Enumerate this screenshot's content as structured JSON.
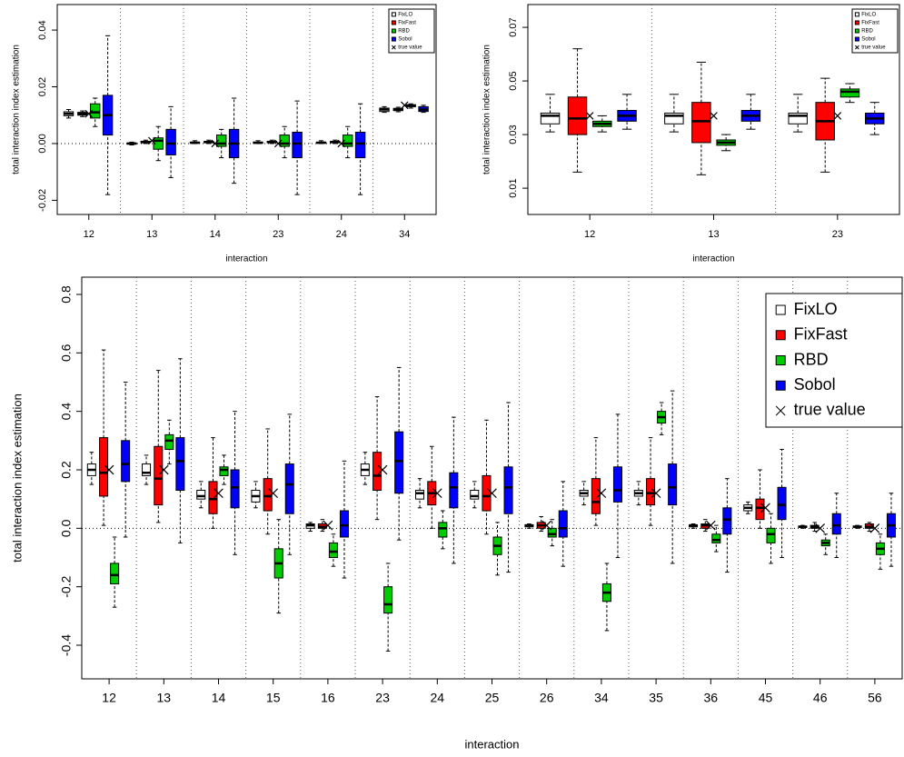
{
  "chart_data": [
    {
      "type": "box",
      "x_label": "interaction",
      "y_label": "total interaction index estimation",
      "categories": [
        "12",
        "13",
        "14",
        "23",
        "24",
        "34"
      ],
      "ylim": [
        -0.025,
        0.049
      ],
      "yticks": [
        {
          "value": -0.02,
          "label": "-0.02"
        },
        {
          "value": 0,
          "label": "0.00"
        },
        0.02,
        0.04
      ],
      "reference_line": 0,
      "legend": "topright",
      "series": [
        {
          "name": "FixLO",
          "color": "#ffffff",
          "stats": [
            [
              0.009,
              0.0098,
              0.0105,
              0.0112,
              0.012
            ],
            [
              -0.0005,
              -0.0002,
              0,
              0.0002,
              0.0005
            ],
            [
              0,
              0.0001,
              0.0003,
              0.0005,
              0.001
            ],
            [
              0,
              0.0001,
              0.0003,
              0.0005,
              0.001
            ],
            [
              0,
              0.0001,
              0.0003,
              0.0005,
              0.001
            ],
            [
              0.011,
              0.0113,
              0.012,
              0.0125,
              0.013
            ]
          ]
        },
        {
          "name": "FixFast",
          "color": "#ff0000",
          "stats": [
            [
              0.0095,
              0.01,
              0.0105,
              0.011,
              0.0115
            ],
            [
              0,
              0.0003,
              0.0005,
              0.0008,
              0.0012
            ],
            [
              0,
              0.0003,
              0.0005,
              0.0008,
              0.0012
            ],
            [
              0,
              0.0003,
              0.0005,
              0.0008,
              0.0012
            ],
            [
              0,
              0.0003,
              0.0005,
              0.0008,
              0.0012
            ],
            [
              0.0112,
              0.0116,
              0.012,
              0.0124,
              0.0128
            ]
          ]
        },
        {
          "name": "RBD",
          "color": "#00cc00",
          "stats": [
            [
              0.006,
              0.009,
              0.011,
              0.014,
              0.016
            ],
            [
              -0.006,
              -0.002,
              0.001,
              0.002,
              0.006
            ],
            [
              -0.005,
              -0.001,
              0,
              0.003,
              0.005
            ],
            [
              -0.005,
              -0.001,
              0,
              0.003,
              0.006
            ],
            [
              -0.005,
              -0.001,
              0,
              0.003,
              0.006
            ],
            [
              0.0125,
              0.013,
              0.0133,
              0.0137,
              0.014
            ]
          ]
        },
        {
          "name": "Sobol",
          "color": "#0000ff",
          "stats": [
            [
              -0.018,
              0.003,
              0.01,
              0.017,
              0.038
            ],
            [
              -0.012,
              -0.004,
              0,
              0.005,
              0.013
            ],
            [
              -0.014,
              -0.005,
              0,
              0.005,
              0.016
            ],
            [
              -0.018,
              -0.005,
              0,
              0.004,
              0.015
            ],
            [
              -0.018,
              -0.005,
              0,
              0.004,
              0.014
            ],
            [
              0.011,
              0.0113,
              0.012,
              0.013,
              0.0135
            ]
          ]
        },
        {
          "name": "true value",
          "marker": "x",
          "values": [
            0.0105,
            0.001,
            0,
            0,
            0,
            0.0135
          ]
        }
      ]
    },
    {
      "type": "box",
      "x_label": "interaction",
      "y_label": "total interaction index estimation",
      "categories": [
        "12",
        "13",
        "23"
      ],
      "ylim": [
        0.0002,
        0.0785
      ],
      "yticks": [
        0.01,
        0.03,
        0.05,
        0.07
      ],
      "legend": "topright",
      "series": [
        {
          "name": "FixLO",
          "color": "#ffffff",
          "stats": [
            [
              0.031,
              0.034,
              0.037,
              0.038,
              0.045
            ],
            [
              0.031,
              0.034,
              0.037,
              0.038,
              0.045
            ],
            [
              0.031,
              0.034,
              0.037,
              0.038,
              0.045
            ]
          ]
        },
        {
          "name": "FixFast",
          "color": "#ff0000",
          "stats": [
            [
              0.016,
              0.03,
              0.036,
              0.044,
              0.062
            ],
            [
              0.015,
              0.027,
              0.035,
              0.042,
              0.057
            ],
            [
              0.016,
              0.028,
              0.035,
              0.042,
              0.051
            ]
          ]
        },
        {
          "name": "RBD",
          "color": "#00cc00",
          "stats": [
            [
              0.031,
              0.033,
              0.034,
              0.035,
              0.037
            ],
            [
              0.024,
              0.026,
              0.027,
              0.028,
              0.03
            ],
            [
              0.042,
              0.044,
              0.046,
              0.047,
              0.049
            ]
          ]
        },
        {
          "name": "Sobol",
          "color": "#0000ff",
          "stats": [
            [
              0.032,
              0.035,
              0.037,
              0.039,
              0.045
            ],
            [
              0.032,
              0.035,
              0.037,
              0.039,
              0.045
            ],
            [
              0.03,
              0.034,
              0.036,
              0.038,
              0.042
            ]
          ]
        },
        {
          "name": "true value",
          "marker": "x",
          "values": [
            0.037,
            0.037,
            0.037
          ]
        }
      ]
    },
    {
      "type": "box",
      "x_label": "interaction",
      "y_label": "total interaction index estimation",
      "categories": [
        "12",
        "13",
        "14",
        "15",
        "16",
        "23",
        "24",
        "25",
        "26",
        "34",
        "35",
        "36",
        "45",
        "46",
        "56"
      ],
      "ylim": [
        -0.515,
        0.859
      ],
      "yticks": [
        -0.4,
        -0.2,
        {
          "value": 0,
          "label": "0.0"
        },
        0.2,
        0.4,
        0.6,
        0.8
      ],
      "reference_line": 0,
      "legend": "topright",
      "series": [
        {
          "name": "FixLO",
          "color": "#ffffff",
          "stats": [
            [
              0.15,
              0.18,
              0.2,
              0.22,
              0.26
            ],
            [
              0.15,
              0.18,
              0.19,
              0.22,
              0.25
            ],
            [
              0.07,
              0.1,
              0.11,
              0.13,
              0.16
            ],
            [
              0.07,
              0.09,
              0.11,
              0.13,
              0.16
            ],
            [
              -0.01,
              0,
              0.01,
              0.015,
              0.02
            ],
            [
              0.15,
              0.18,
              0.2,
              0.22,
              0.26
            ],
            [
              0.07,
              0.1,
              0.12,
              0.13,
              0.17
            ],
            [
              0.07,
              0.1,
              0.11,
              0.13,
              0.16
            ],
            [
              0,
              0.005,
              0.01,
              0.012,
              0.015
            ],
            [
              0.08,
              0.11,
              0.12,
              0.13,
              0.16
            ],
            [
              0.08,
              0.11,
              0.12,
              0.13,
              0.16
            ],
            [
              0,
              0.005,
              0.01,
              0.012,
              0.015
            ],
            [
              0.05,
              0.06,
              0.07,
              0.08,
              0.09
            ],
            [
              0,
              0.003,
              0.005,
              0.008,
              0.01
            ],
            [
              0,
              0.003,
              0.005,
              0.008,
              0.01
            ]
          ]
        },
        {
          "name": "FixFast",
          "color": "#ff0000",
          "stats": [
            [
              0.01,
              0.11,
              0.19,
              0.31,
              0.61
            ],
            [
              0.02,
              0.08,
              0.17,
              0.28,
              0.54
            ],
            [
              0,
              0.05,
              0.1,
              0.16,
              0.31
            ],
            [
              -0.02,
              0.06,
              0.11,
              0.17,
              0.34
            ],
            [
              -0.01,
              0,
              0.005,
              0.015,
              0.03
            ],
            [
              0.03,
              0.13,
              0.18,
              0.26,
              0.45
            ],
            [
              0,
              0.08,
              0.12,
              0.16,
              0.28
            ],
            [
              -0.02,
              0.06,
              0.11,
              0.18,
              0.37
            ],
            [
              -0.01,
              0,
              0.01,
              0.02,
              0.04
            ],
            [
              0.01,
              0.05,
              0.09,
              0.17,
              0.31
            ],
            [
              0.01,
              0.08,
              0.12,
              0.17,
              0.31
            ],
            [
              -0.01,
              0,
              0.01,
              0.015,
              0.03
            ],
            [
              0,
              0.03,
              0.07,
              0.1,
              0.2
            ],
            [
              -0.01,
              0,
              0.005,
              0.01,
              0.02
            ],
            [
              -0.01,
              0,
              0.005,
              0.015,
              0.02
            ]
          ]
        },
        {
          "name": "RBD",
          "color": "#00cc00",
          "stats": [
            [
              -0.27,
              -0.19,
              -0.16,
              -0.12,
              -0.03
            ],
            [
              0.22,
              0.27,
              0.3,
              0.32,
              0.37
            ],
            [
              0.15,
              0.18,
              0.2,
              0.21,
              0.25
            ],
            [
              -0.29,
              -0.17,
              -0.12,
              -0.07,
              0.03
            ],
            [
              -0.13,
              -0.1,
              -0.08,
              -0.05,
              -0.02
            ],
            [
              -0.42,
              -0.29,
              -0.26,
              -0.2,
              -0.12
            ],
            [
              -0.07,
              -0.03,
              0,
              0.02,
              0.06
            ],
            [
              -0.16,
              -0.09,
              -0.06,
              -0.03,
              0.02
            ],
            [
              -0.06,
              -0.03,
              -0.02,
              0,
              0.03
            ],
            [
              -0.35,
              -0.25,
              -0.22,
              -0.19,
              -0.12
            ],
            [
              0.32,
              0.36,
              0.38,
              0.4,
              0.43
            ],
            [
              -0.08,
              -0.05,
              -0.04,
              -0.02,
              0.01
            ],
            [
              -0.12,
              -0.05,
              -0.02,
              0,
              0.05
            ],
            [
              -0.09,
              -0.06,
              -0.05,
              -0.04,
              -0.02
            ],
            [
              -0.14,
              -0.09,
              -0.07,
              -0.05,
              -0.02
            ]
          ]
        },
        {
          "name": "Sobol",
          "color": "#0000ff",
          "stats": [
            [
              -0.03,
              0.16,
              0.22,
              0.3,
              0.5
            ],
            [
              -0.05,
              0.13,
              0.23,
              0.31,
              0.58
            ],
            [
              -0.09,
              0.07,
              0.14,
              0.2,
              0.4
            ],
            [
              -0.09,
              0.05,
              0.15,
              0.22,
              0.39
            ],
            [
              -0.17,
              -0.03,
              0.01,
              0.06,
              0.23
            ],
            [
              -0.04,
              0.12,
              0.23,
              0.33,
              0.55
            ],
            [
              -0.12,
              0.07,
              0.14,
              0.19,
              0.38
            ],
            [
              -0.15,
              0.05,
              0.14,
              0.21,
              0.43
            ],
            [
              -0.13,
              -0.03,
              0,
              0.06,
              0.16
            ],
            [
              -0.1,
              0.09,
              0.13,
              0.21,
              0.39
            ],
            [
              -0.12,
              0.08,
              0.14,
              0.22,
              0.47
            ],
            [
              -0.15,
              -0.02,
              0.03,
              0.07,
              0.17
            ],
            [
              -0.1,
              0.03,
              0.08,
              0.14,
              0.27
            ],
            [
              -0.1,
              -0.02,
              0.01,
              0.05,
              0.12
            ],
            [
              -0.13,
              -0.03,
              0.01,
              0.05,
              0.12
            ]
          ]
        },
        {
          "name": "true value",
          "marker": "x",
          "values": [
            0.2,
            0.2,
            0.12,
            0.12,
            0.01,
            0.2,
            0.12,
            0.12,
            0.01,
            0.12,
            0.12,
            0.01,
            0.07,
            0,
            0
          ]
        }
      ]
    }
  ]
}
